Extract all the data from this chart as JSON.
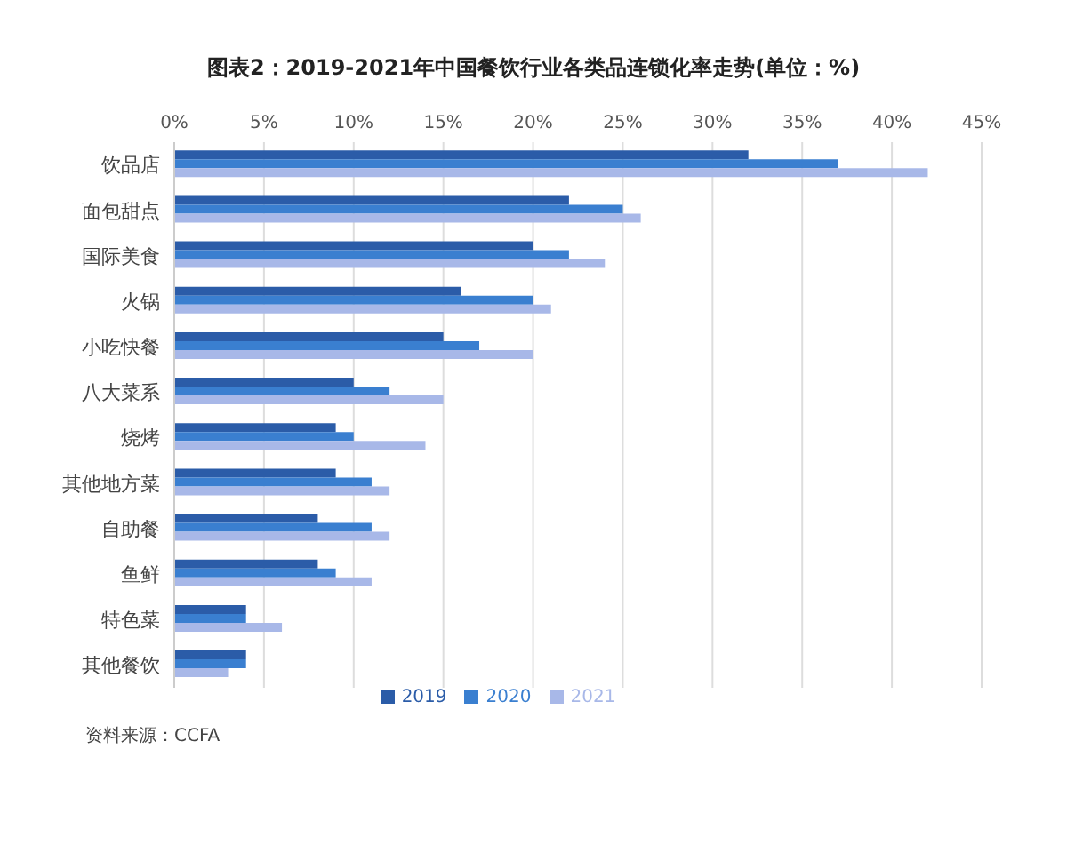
{
  "chart_data": {
    "type": "bar",
    "orientation": "horizontal",
    "title": "图表2：2019-2021年中国餐饮行业各类品连锁化率走势(单位：%)",
    "categories": [
      "饮品店",
      "面包甜点",
      "国际美食",
      "火锅",
      "小吃快餐",
      "八大菜系",
      "烧烤",
      "其他地方菜",
      "自助餐",
      "鱼鲜",
      "特色菜",
      "其他餐饮"
    ],
    "series": [
      {
        "name": "2019",
        "color": "#2b5ca8",
        "values": [
          32,
          22,
          20,
          16,
          15,
          10,
          9,
          9,
          8,
          8,
          4,
          4
        ]
      },
      {
        "name": "2020",
        "color": "#3a7fd0",
        "values": [
          37,
          25,
          22,
          20,
          17,
          12,
          10,
          11,
          11,
          9,
          4,
          4
        ]
      },
      {
        "name": "2021",
        "color": "#a8b8e8",
        "values": [
          42,
          26,
          24,
          21,
          20,
          15,
          14,
          12,
          12,
          11,
          6,
          3
        ]
      }
    ],
    "xlim": [
      0,
      45
    ],
    "xticks": [
      {
        "value": 0,
        "label": "0%"
      },
      {
        "value": 5,
        "label": "5%"
      },
      {
        "value": 10,
        "label": "10%"
      },
      {
        "value": 15,
        "label": "15%"
      },
      {
        "value": 20,
        "label": "20%"
      },
      {
        "value": 25,
        "label": "25%"
      },
      {
        "value": 30,
        "label": "30%"
      },
      {
        "value": 35,
        "label": "35%"
      },
      {
        "value": 40,
        "label": "40%"
      },
      {
        "value": 45,
        "label": "45%"
      }
    ],
    "grid": "x",
    "legend": "bottom",
    "annotations": [
      "资料来源：CCFA"
    ]
  }
}
